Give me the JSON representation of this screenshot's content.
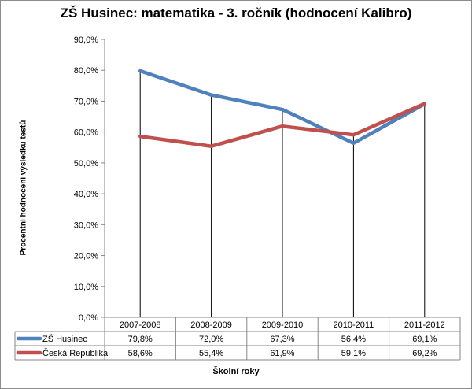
{
  "chart_data": {
    "type": "line",
    "title": "ZŠ Husinec:  matematika - 3. ročník (hodnocení  Kalibro)",
    "xlabel": "Školní roky",
    "ylabel": "Procentní hodnocení výsledku testů",
    "categories": [
      "2007-2008",
      "2008-2009",
      "2009-2010",
      "2010-2011",
      "2011-2012"
    ],
    "ylim": [
      0,
      90
    ],
    "yticks": [
      "0,0%",
      "10,0%",
      "20,0%",
      "30,0%",
      "40,0%",
      "50,0%",
      "60,0%",
      "70,0%",
      "80,0%",
      "90,0%"
    ],
    "grid": false,
    "drop_lines": true,
    "data_table": true,
    "series": [
      {
        "name": "ZŠ Husinec",
        "color": "#4f81bd",
        "values": [
          79.8,
          72.0,
          67.3,
          56.4,
          69.1
        ],
        "labels": [
          "79,8%",
          "72,0%",
          "67,3%",
          "56,4%",
          "69,1%"
        ]
      },
      {
        "name": "Česká Republika",
        "color": "#c0504d",
        "values": [
          58.6,
          55.4,
          61.9,
          59.1,
          69.2
        ],
        "labels": [
          "58,6%",
          "55,4%",
          "61,9%",
          "59,1%",
          "69,2%"
        ]
      }
    ]
  }
}
